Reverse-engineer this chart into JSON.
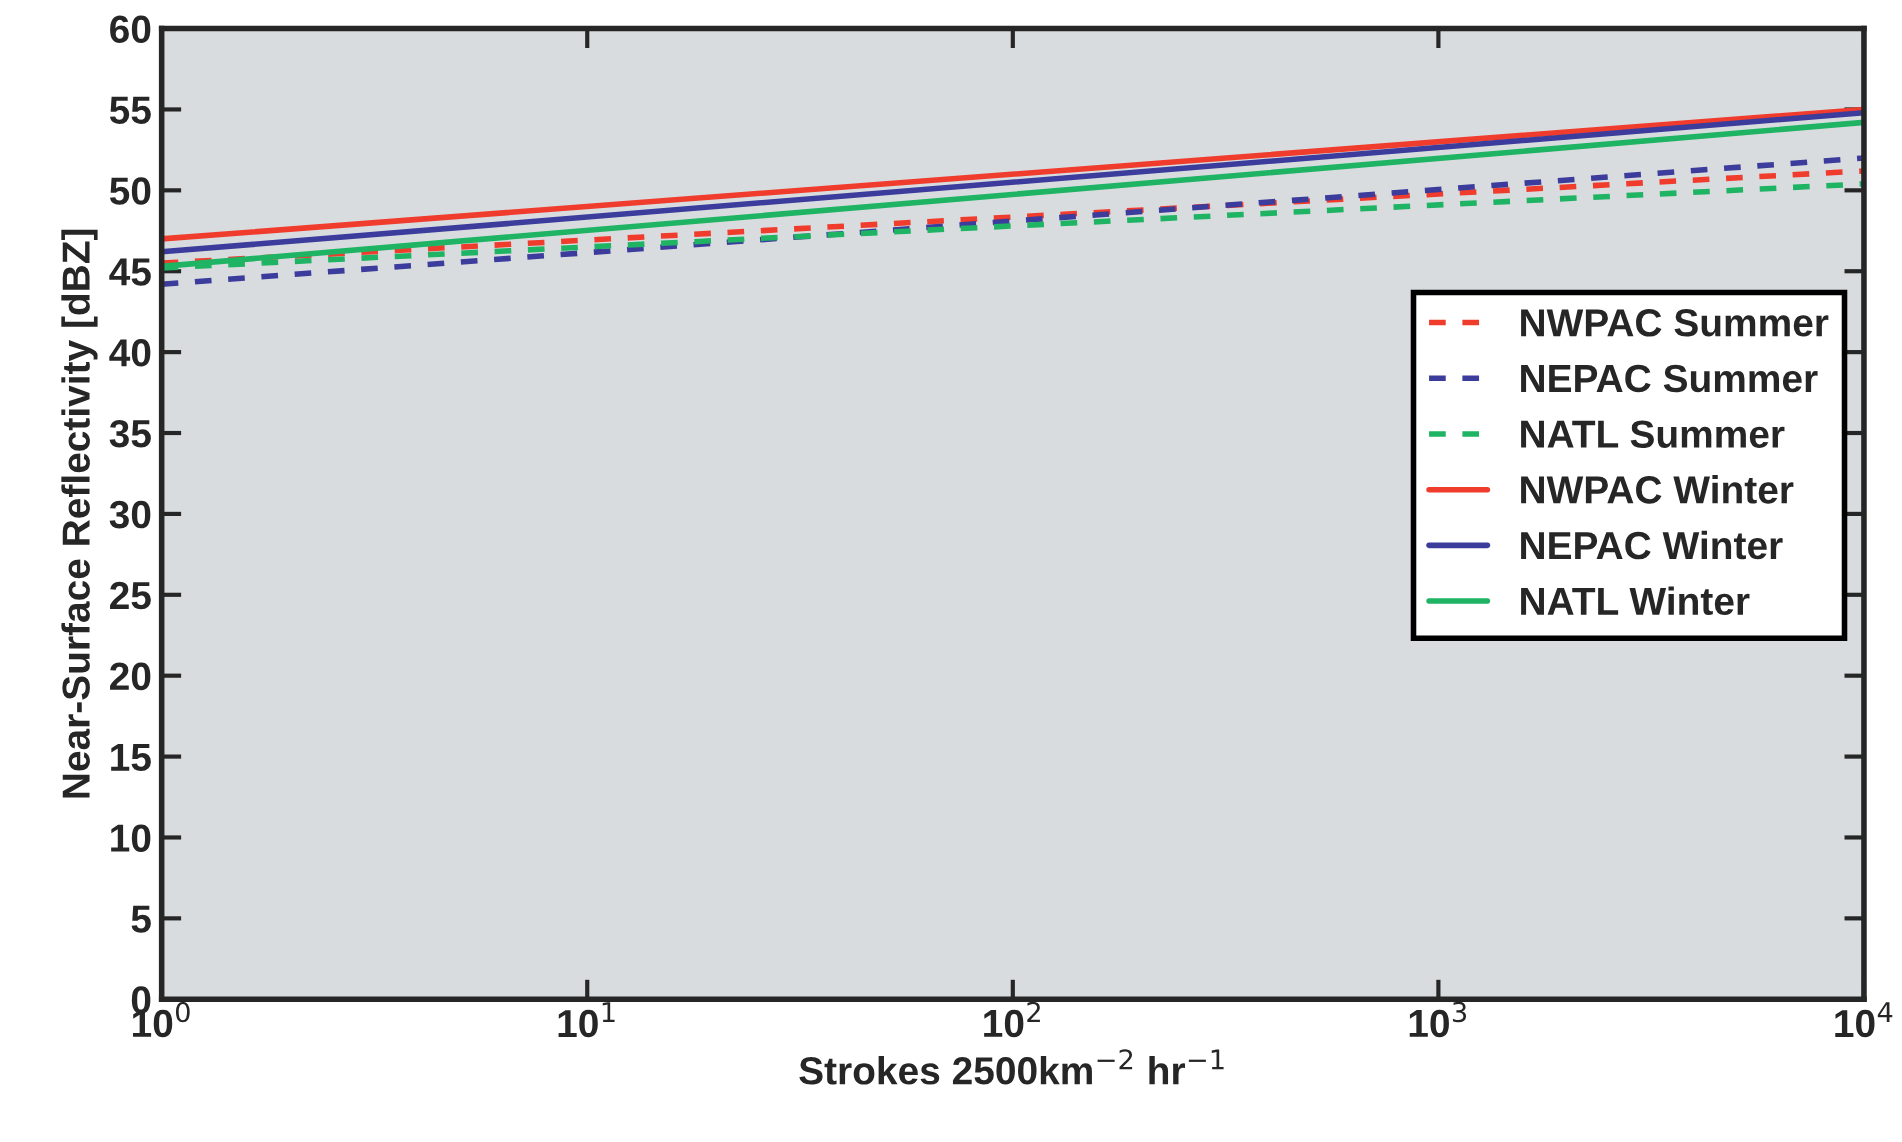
{
  "chart_data": {
    "type": "line",
    "xlabel": "Strokes 2500km$^{−2}$ hr$^{−1}$",
    "ylabel": "Near-Surface Reflectivity [dBZ]",
    "log": "x",
    "x": [
      1,
      10000
    ],
    "series": [
      {
        "name": "NWPAC Summer",
        "color": "#f03c2c",
        "line_style": "dashed",
        "values": [
          45.5,
          51.2
        ]
      },
      {
        "name": "NEPAC Summer",
        "color": "#3c3c9c",
        "line_style": "dashed",
        "values": [
          44.2,
          52.0
        ]
      },
      {
        "name": "NATL Summer",
        "color": "#1eb464",
        "line_style": "dashed",
        "values": [
          45.2,
          50.4
        ]
      },
      {
        "name": "NWPAC Winter",
        "color": "#f03c2c",
        "line_style": "solid",
        "values": [
          47.0,
          55.0
        ]
      },
      {
        "name": "NEPAC Winter",
        "color": "#3c3c9c",
        "line_style": "solid",
        "values": [
          46.2,
          54.8
        ]
      },
      {
        "name": "NATL Winter",
        "color": "#1eb464",
        "line_style": "solid",
        "values": [
          45.3,
          54.2
        ]
      }
    ],
    "xlim": [
      1,
      10000
    ],
    "xticks": [
      {
        "value": 1,
        "label": "10$^{0}$"
      },
      {
        "value": 10,
        "label": "10$^{1}$"
      },
      {
        "value": 100,
        "label": "10$^{2}$"
      },
      {
        "value": 1000,
        "label": "10$^{3}$"
      },
      {
        "value": 10000,
        "label": "10$^{4}$"
      }
    ],
    "ylim": [
      0,
      60
    ],
    "yticks": [
      0,
      5,
      10,
      15,
      20,
      25,
      30,
      35,
      40,
      45,
      50,
      55,
      60
    ],
    "grid": false,
    "legend": "right"
  }
}
